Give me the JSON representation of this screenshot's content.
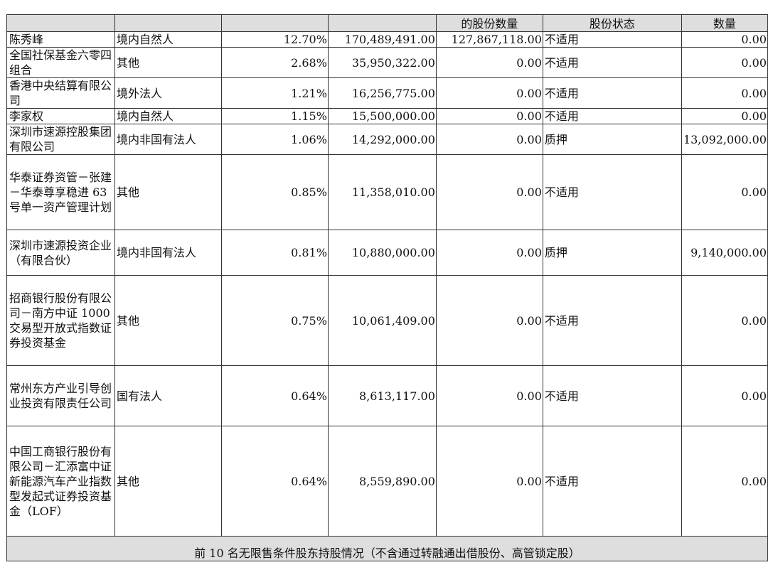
{
  "table": {
    "header": [
      "",
      "",
      "",
      "",
      "的股份数量",
      "股份状态",
      "数量"
    ],
    "rows": [
      {
        "name": "陈秀峰",
        "type": "境内自然人",
        "pct": "12.70%",
        "shares": "170,489,491.00",
        "restricted": "127,867,118.00",
        "status": "不适用",
        "qty": "0.00"
      },
      {
        "name": "全国社保基金六零四组合",
        "type": "其他",
        "pct": "2.68%",
        "shares": "35,950,322.00",
        "restricted": "0.00",
        "status": "不适用",
        "qty": "0.00"
      },
      {
        "name": "香港中央结算有限公司",
        "type": "境外法人",
        "pct": "1.21%",
        "shares": "16,256,775.00",
        "restricted": "0.00",
        "status": "不适用",
        "qty": "0.00"
      },
      {
        "name": "李家权",
        "type": "境内自然人",
        "pct": "1.15%",
        "shares": "15,500,000.00",
        "restricted": "0.00",
        "status": "不适用",
        "qty": "0.00"
      },
      {
        "name": "深圳市速源控股集团有限公司",
        "type": "境内非国有法人",
        "pct": "1.06%",
        "shares": "14,292,000.00",
        "restricted": "0.00",
        "status": "质押",
        "qty": "13,092,000.00"
      },
      {
        "name": "华泰证券资管－张建－华泰尊享稳进 63 号单一资产管理计划",
        "type": "其他",
        "pct": "0.85%",
        "shares": "11,358,010.00",
        "restricted": "0.00",
        "status": "不适用",
        "qty": "0.00"
      },
      {
        "name": "深圳市速源投资企业（有限合伙）",
        "type": "境内非国有法人",
        "pct": "0.81%",
        "shares": "10,880,000.00",
        "restricted": "0.00",
        "status": "质押",
        "qty": "9,140,000.00"
      },
      {
        "name": "招商银行股份有限公司－南方中证 1000 交易型开放式指数证券投资基金",
        "type": "其他",
        "pct": "0.75%",
        "shares": "10,061,409.00",
        "restricted": "0.00",
        "status": "不适用",
        "qty": "0.00"
      },
      {
        "name": "常州东方产业引导创业投资有限责任公司",
        "type": "国有法人",
        "pct": "0.64%",
        "shares": "8,613,117.00",
        "restricted": "0.00",
        "status": "不适用",
        "qty": "0.00"
      },
      {
        "name": "中国工商银行股份有限公司－汇添富中证新能源汽车产业指数型发起式证券投资基金（LOF）",
        "type": "其他",
        "pct": "0.64%",
        "shares": "8,559,890.00",
        "restricted": "0.00",
        "status": "不适用",
        "qty": "0.00"
      }
    ],
    "footer": "前 10 名无限售条件股东持股情况（不含通过转融通出借股份、高管锁定股）"
  }
}
